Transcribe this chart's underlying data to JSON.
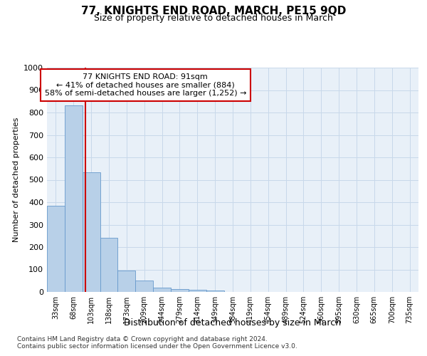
{
  "title": "77, KNIGHTS END ROAD, MARCH, PE15 9QD",
  "subtitle": "Size of property relative to detached houses in March",
  "xlabel": "Distribution of detached houses by size in March",
  "ylabel": "Number of detached properties",
  "bar_labels": [
    "33sqm",
    "68sqm",
    "103sqm",
    "138sqm",
    "173sqm",
    "209sqm",
    "244sqm",
    "279sqm",
    "314sqm",
    "349sqm",
    "384sqm",
    "419sqm",
    "454sqm",
    "489sqm",
    "524sqm",
    "560sqm",
    "595sqm",
    "630sqm",
    "665sqm",
    "700sqm",
    "735sqm"
  ],
  "bar_values": [
    385,
    833,
    533,
    241,
    95,
    52,
    19,
    13,
    9,
    5,
    0,
    0,
    0,
    0,
    0,
    0,
    0,
    0,
    0,
    0,
    0
  ],
  "bar_color": "#b8d0e8",
  "bar_edge_color": "#6699cc",
  "grid_color": "#c8d8ea",
  "background_color": "#e8f0f8",
  "property_sqm": 91,
  "annotation_line1": "77 KNIGHTS END ROAD: 91sqm",
  "annotation_line2": "← 41% of detached houses are smaller (884)",
  "annotation_line3": "58% of semi-detached houses are larger (1,252) →",
  "annotation_box_color": "#ffffff",
  "annotation_box_edge_color": "#cc0000",
  "red_line_color": "#cc0000",
  "ylim": [
    0,
    1000
  ],
  "yticks": [
    0,
    100,
    200,
    300,
    400,
    500,
    600,
    700,
    800,
    900,
    1000
  ],
  "footnote1": "Contains HM Land Registry data © Crown copyright and database right 2024.",
  "footnote2": "Contains public sector information licensed under the Open Government Licence v3.0."
}
